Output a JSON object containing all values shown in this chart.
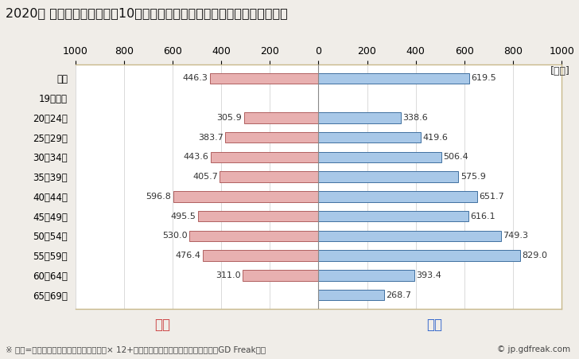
{
  "title": "2020年 民間企業（従業者数10人以上）フルタイム労働者の男女別平均年収",
  "ylabel_unit": "[万円]",
  "categories": [
    "全体",
    "19歳以下",
    "20～24歳",
    "25～29歳",
    "30～34歳",
    "35～39歳",
    "40～44歳",
    "45～49歳",
    "50～54歳",
    "55～59歳",
    "60～64歳",
    "65～69歳"
  ],
  "female_values": [
    446.3,
    0,
    305.9,
    383.7,
    443.6,
    405.7,
    596.8,
    495.5,
    530.0,
    476.4,
    311.0,
    0
  ],
  "male_values": [
    619.5,
    0,
    338.6,
    419.6,
    506.4,
    575.9,
    651.7,
    616.1,
    749.3,
    829.0,
    393.4,
    268.7
  ],
  "female_color": "#e8b0b0",
  "male_color": "#a8c8e8",
  "female_edge_color": "#b06060",
  "male_edge_color": "#4070a0",
  "xlim": [
    -1000,
    1000
  ],
  "xticks": [
    -1000,
    -800,
    -600,
    -400,
    -200,
    0,
    200,
    400,
    600,
    800,
    1000
  ],
  "xtick_labels": [
    "1000",
    "800",
    "600",
    "400",
    "200",
    "0",
    "200",
    "400",
    "600",
    "800",
    "1000"
  ],
  "female_label": "女性",
  "male_label": "男性",
  "footnote": "※ 年収=「きまって支給する現金給与額」× 12+「年間賞与その他特別給与額」としてGD Freak推計",
  "credit": "© jp.gdfreak.com",
  "background_color": "#f0ede8",
  "plot_background_color": "#ffffff",
  "bar_height": 0.55,
  "title_fontsize": 11.5,
  "axis_fontsize": 9,
  "label_fontsize": 8.5,
  "value_fontsize": 8,
  "legend_fontsize": 12,
  "footnote_fontsize": 7.5
}
